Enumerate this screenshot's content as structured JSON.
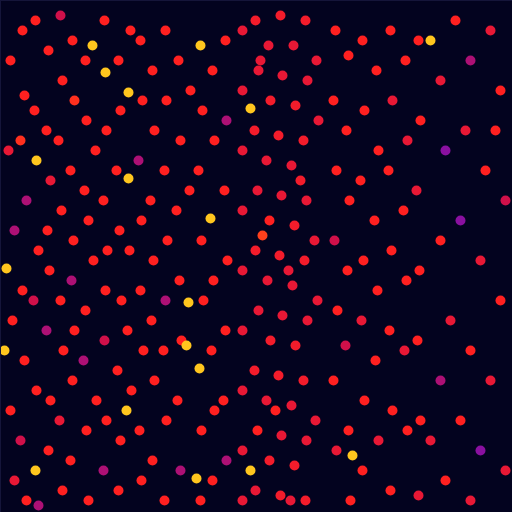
{
  "chart_data": {
    "type": "scatter",
    "xlim": [
      0,
      512
    ],
    "ylim": [
      0,
      512
    ],
    "tick_labels": false,
    "grid": false,
    "color_domain": [
      0,
      1
    ],
    "x": [
      10,
      8,
      14,
      6,
      12,
      4,
      10,
      14,
      22,
      24,
      20,
      26,
      22,
      24,
      20,
      26,
      35,
      36,
      34,
      38,
      33,
      36,
      35,
      38,
      48,
      46,
      50,
      47,
      49,
      46,
      50,
      48,
      60,
      62,
      58,
      61,
      60,
      63,
      59,
      62,
      72,
      74,
      70,
      73,
      71,
      74,
      72,
      70,
      85,
      86,
      84,
      88,
      85,
      83,
      86,
      88,
      92,
      95,
      93,
      96,
      105,
      104,
      106,
      103,
      107,
      105,
      104,
      106,
      103,
      118,
      120,
      116,
      119,
      121,
      117,
      120,
      118,
      128,
      128,
      126,
      130,
      129,
      127,
      131,
      140,
      142,
      138,
      141,
      140,
      143,
      139,
      141,
      152,
      154,
      150,
      153,
      151,
      154,
      152,
      165,
      166,
      164,
      167,
      165,
      163,
      166,
      164,
      178,
      180,
      176,
      179,
      181,
      177,
      180,
      188,
      186,
      196,
      190,
      189,
      200,
      202,
      198,
      201,
      203,
      199,
      201,
      200,
      212,
      214,
      210,
      213,
      211,
      214,
      212,
      225,
      226,
      224,
      227,
      225,
      223,
      226,
      242,
      242,
      242,
      242,
      242,
      242,
      242,
      242,
      242,
      250,
      250,
      255,
      258,
      254,
      257,
      255,
      258,
      254,
      257,
      255,
      268,
      270,
      266,
      269,
      267,
      270,
      266,
      269,
      280,
      282,
      278,
      281,
      279,
      282,
      278,
      281,
      280,
      293,
      295,
      291,
      294,
      292,
      295,
      291,
      294,
      305,
      307,
      303,
      306,
      304,
      307,
      303,
      306,
      305,
      316,
      318,
      314,
      317,
      315,
      262,
      288,
      300,
      275,
      260,
      290,
      335,
      333,
      336,
      334,
      337,
      333,
      336,
      348,
      346,
      349,
      347,
      345,
      348,
      352,
      350,
      362,
      364,
      360,
      363,
      361,
      364,
      362,
      376,
      378,
      374,
      377,
      375,
      378,
      390,
      392,
      388,
      391,
      389,
      392,
      390,
      405,
      407,
      403,
      406,
      404,
      407,
      418,
      420,
      416,
      419,
      417,
      420,
      418,
      430,
      440,
      455,
      470,
      490,
      500,
      445,
      465,
      485,
      505,
      440,
      460,
      480,
      500,
      450,
      470,
      440,
      490,
      460,
      480,
      505,
      445,
      470,
      430,
      495
    ],
    "y": [
      60,
      150,
      230,
      268,
      320,
      350,
      410,
      480,
      30,
      95,
      140,
      200,
      290,
      360,
      440,
      500,
      20,
      160,
      110,
      250,
      300,
      390,
      470,
      505,
      50,
      130,
      180,
      230,
      270,
      330,
      400,
      450,
      15,
      80,
      140,
      210,
      300,
      350,
      420,
      490,
      40,
      100,
      170,
      240,
      280,
      330,
      380,
      460,
      60,
      120,
      190,
      220,
      310,
      360,
      430,
      500,
      45,
      150,
      260,
      400,
      72,
      20,
      130,
      200,
      250,
      290,
      340,
      420,
      470,
      60,
      110,
      170,
      230,
      300,
      370,
      440,
      490,
      92,
      178,
      410,
      30,
      250,
      330,
      390,
      40,
      100,
      160,
      220,
      290,
      350,
      430,
      480,
      70,
      130,
      200,
      260,
      320,
      380,
      460,
      30,
      100,
      170,
      240,
      300,
      350,
      420,
      500,
      60,
      140,
      210,
      280,
      340,
      400,
      470,
      302,
      345,
      478,
      90,
      190,
      45,
      110,
      170,
      240,
      300,
      368,
      430,
      500,
      70,
      140,
      218,
      280,
      350,
      410,
      480,
      40,
      120,
      190,
      260,
      330,
      400,
      460,
      30,
      90,
      150,
      210,
      270,
      330,
      390,
      450,
      500,
      108,
      470,
      20,
      70,
      130,
      190,
      250,
      310,
      370,
      430,
      490,
      45,
      100,
      160,
      220,
      280,
      340,
      400,
      460,
      15,
      75,
      135,
      195,
      255,
      315,
      375,
      435,
      495,
      45,
      105,
      165,
      225,
      285,
      345,
      405,
      465,
      20,
      80,
      140,
      200,
      260,
      320,
      380,
      440,
      500,
      60,
      120,
      240,
      300,
      420,
      235,
      270,
      180,
      410,
      60,
      500,
      30,
      100,
      170,
      240,
      310,
      380,
      450,
      55,
      130,
      200,
      270,
      345,
      430,
      455,
      500,
      40,
      110,
      180,
      260,
      320,
      400,
      470,
      70,
      150,
      220,
      290,
      360,
      440,
      30,
      100,
      170,
      250,
      330,
      410,
      490,
      60,
      140,
      210,
      280,
      350,
      430,
      40,
      120,
      190,
      270,
      340,
      420,
      495,
      40,
      80,
      20,
      60,
      30,
      90,
      150,
      130,
      170,
      200,
      240,
      220,
      260,
      300,
      320,
      350,
      380,
      380,
      420,
      450,
      470,
      480,
      500,
      440,
      130
    ],
    "color_values": [
      0.6,
      0.5,
      0.3,
      0.95,
      0.6,
      0.95,
      0.6,
      0.5,
      0.6,
      0.6,
      0.65,
      0.3,
      0.6,
      0.6,
      0.4,
      0.6,
      0.6,
      0.95,
      0.6,
      0.6,
      0.4,
      0.6,
      0.95,
      0.3,
      0.6,
      0.6,
      0.5,
      0.6,
      0.6,
      0.3,
      0.6,
      0.6,
      0.4,
      0.6,
      0.6,
      0.6,
      0.6,
      0.6,
      0.5,
      0.6,
      0.6,
      0.65,
      0.6,
      0.6,
      0.3,
      0.6,
      0.6,
      0.6,
      0.6,
      0.6,
      0.6,
      0.6,
      0.6,
      0.3,
      0.6,
      0.6,
      0.95,
      0.6,
      0.6,
      0.6,
      0.95,
      0.6,
      0.6,
      0.6,
      0.6,
      0.6,
      0.4,
      0.6,
      0.3,
      0.6,
      0.6,
      0.6,
      0.6,
      0.6,
      0.6,
      0.6,
      0.6,
      0.95,
      0.95,
      0.95,
      0.6,
      0.6,
      0.6,
      0.6,
      0.6,
      0.6,
      0.3,
      0.6,
      0.6,
      0.6,
      0.6,
      0.6,
      0.6,
      0.6,
      0.6,
      0.6,
      0.6,
      0.6,
      0.6,
      0.6,
      0.6,
      0.6,
      0.6,
      0.3,
      0.6,
      0.6,
      0.6,
      0.6,
      0.6,
      0.6,
      0.6,
      0.6,
      0.6,
      0.3,
      0.95,
      0.95,
      0.95,
      0.6,
      0.6,
      0.95,
      0.6,
      0.6,
      0.6,
      0.6,
      0.95,
      0.6,
      0.6,
      0.6,
      0.6,
      0.95,
      0.6,
      0.6,
      0.6,
      0.6,
      0.6,
      0.3,
      0.6,
      0.6,
      0.6,
      0.6,
      0.3,
      0.5,
      0.5,
      0.5,
      0.5,
      0.5,
      0.5,
      0.5,
      0.5,
      0.5,
      0.95,
      0.95,
      0.55,
      0.5,
      0.55,
      0.5,
      0.55,
      0.5,
      0.55,
      0.6,
      0.5,
      0.5,
      0.55,
      0.5,
      0.6,
      0.5,
      0.55,
      0.5,
      0.55,
      0.55,
      0.5,
      0.55,
      0.5,
      0.55,
      0.5,
      0.55,
      0.5,
      0.55,
      0.5,
      0.55,
      0.5,
      0.55,
      0.5,
      0.55,
      0.5,
      0.55,
      0.55,
      0.5,
      0.55,
      0.5,
      0.55,
      0.5,
      0.55,
      0.5,
      0.55,
      0.5,
      0.5,
      0.5,
      0.5,
      0.5,
      0.7,
      0.5,
      0.55,
      0.6,
      0.5,
      0.5,
      0.6,
      0.6,
      0.6,
      0.4,
      0.6,
      0.6,
      0.5,
      0.6,
      0.6,
      0.6,
      0.6,
      0.4,
      0.6,
      0.95,
      0.6,
      0.6,
      0.6,
      0.6,
      0.6,
      0.5,
      0.6,
      0.6,
      0.6,
      0.6,
      0.6,
      0.6,
      0.6,
      0.5,
      0.6,
      0.5,
      0.6,
      0.6,
      0.6,
      0.6,
      0.6,
      0.6,
      0.5,
      0.6,
      0.6,
      0.5,
      0.6,
      0.6,
      0.6,
      0.5,
      0.6,
      0.6,
      0.6,
      0.5,
      0.95,
      0.5,
      0.6,
      0.3,
      0.5,
      0.6,
      0.2,
      0.5,
      0.6,
      0.4,
      0.6,
      0.2,
      0.5,
      0.6,
      0.5,
      0.6,
      0.3,
      0.5,
      0.6,
      0.2,
      0.5,
      0.6,
      0.5,
      0.5,
      0.6
    ]
  }
}
